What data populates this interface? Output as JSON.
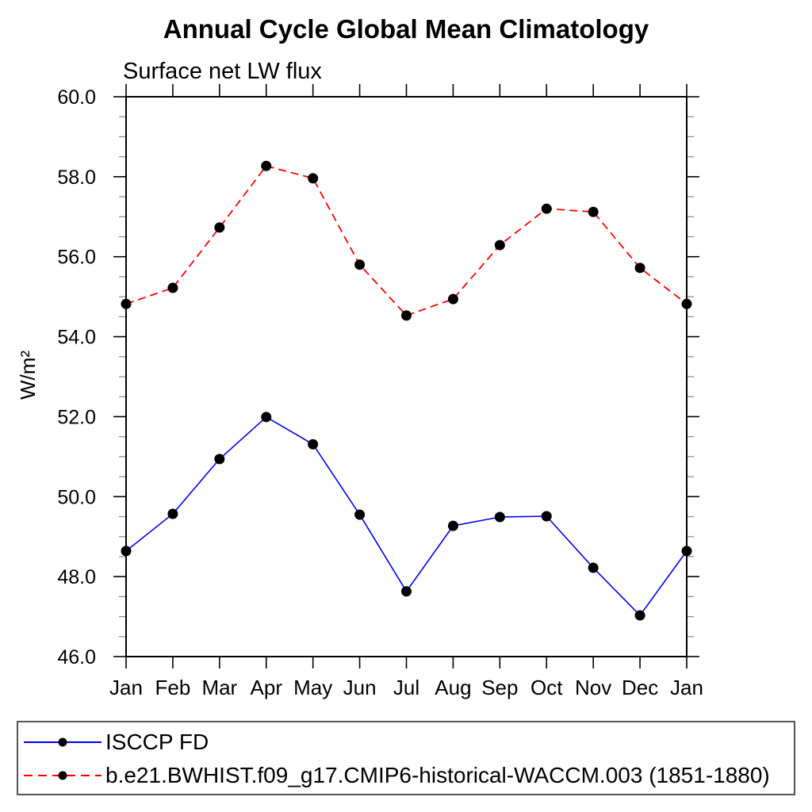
{
  "title": "Annual Cycle Global Mean Climatology",
  "subtitle": "Surface net LW flux",
  "chart_data": {
    "type": "line",
    "x_categories": [
      "Jan",
      "Feb",
      "Mar",
      "Apr",
      "May",
      "Jun",
      "Jul",
      "Aug",
      "Sep",
      "Oct",
      "Nov",
      "Dec",
      "Jan"
    ],
    "ylabel": "W/m²",
    "ylim": [
      46,
      60
    ],
    "ytick_major": 2,
    "ytick_minor": 0.5,
    "ytick_labels": [
      "46.0",
      "48.0",
      "50.0",
      "52.0",
      "54.0",
      "56.0",
      "58.0",
      "60.0"
    ],
    "grid": "off",
    "legend_position": "bottom",
    "series": [
      {
        "name": "ISCCP FD",
        "color": "#0000ee",
        "line_style": "solid",
        "marker_color": "#000000",
        "values": [
          48.64,
          49.57,
          50.94,
          51.99,
          51.31,
          49.55,
          47.63,
          49.27,
          49.49,
          49.51,
          48.22,
          47.03,
          48.64
        ]
      },
      {
        "name": "b.e21.BWHIST.f09_g17.CMIP6-historical-WACCM.003 (1851-1880)",
        "color": "#ff0000",
        "line_style": "dashed",
        "marker_color": "#000000",
        "values": [
          54.82,
          55.22,
          56.73,
          58.27,
          57.96,
          55.8,
          54.53,
          54.94,
          56.29,
          57.2,
          57.12,
          55.72,
          54.82
        ]
      }
    ]
  }
}
